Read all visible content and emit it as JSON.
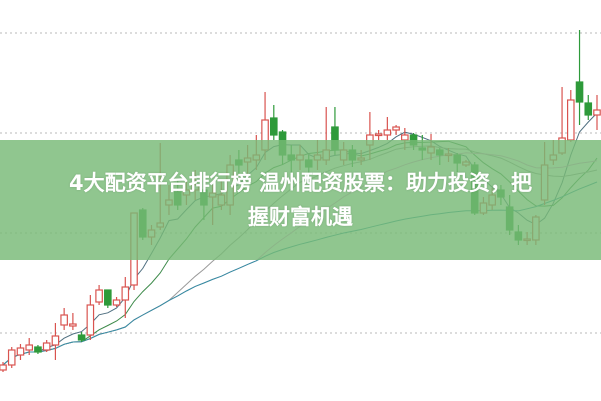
{
  "banner": {
    "title_line1": "4大配资平台排行榜 温州配资股票：助力投资，把",
    "title_line2": "握财富机遇",
    "background_color": "#78b976"
  },
  "chart_data": {
    "type": "candlestick",
    "title": "",
    "xlabel": "",
    "ylabel": "",
    "grid": true,
    "up_color": "#d9534f",
    "down_color": "#2e9a3a",
    "moving_averages": [
      {
        "period": 5,
        "color": "#4f6f80"
      },
      {
        "period": 10,
        "color": "#3d8a4a"
      },
      {
        "period": 20,
        "color": "#9a9a9a"
      },
      {
        "period": 30,
        "color": "#e49ad6"
      },
      {
        "period": 60,
        "color": "#2f8fa0"
      }
    ],
    "ohlc": [
      [
        3.0,
        3.5,
        3.8,
        2.8
      ],
      [
        3.5,
        5.0,
        5.3,
        3.2
      ],
      [
        4.5,
        5.2,
        5.6,
        4.0
      ],
      [
        5.0,
        5.5,
        6.2,
        4.5
      ],
      [
        5.3,
        4.8,
        5.5,
        4.6
      ],
      [
        5.0,
        5.7,
        6.0,
        4.8
      ],
      [
        5.5,
        6.4,
        7.7,
        4.0
      ],
      [
        7.5,
        8.5,
        9.2,
        7.0
      ],
      [
        7.4,
        7.6,
        8.7,
        7.0
      ],
      [
        6.5,
        6.0,
        6.8,
        5.8
      ],
      [
        6.5,
        9.5,
        10.5,
        6.0
      ],
      [
        9.8,
        11.0,
        11.5,
        9.5
      ],
      [
        11.0,
        9.5,
        11.0,
        9.2
      ],
      [
        9.5,
        10.0,
        10.3,
        9.3
      ],
      [
        10.0,
        11.3,
        12.3,
        8.2
      ],
      [
        11.5,
        18.7,
        18.7,
        11.0
      ],
      [
        19.0,
        16.3,
        19.2,
        16.0
      ],
      [
        16.3,
        17.0,
        17.5,
        15.5
      ],
      [
        17.3,
        17.7,
        25.7,
        17.0
      ],
      [
        19.5,
        20.0,
        21.5,
        18.5
      ],
      [
        20.8,
        19.5,
        22.0,
        19.0
      ],
      [
        20.5,
        21.0,
        22.0,
        19.5
      ],
      [
        21.0,
        21.5,
        23.0,
        20.0
      ],
      [
        21.0,
        19.5,
        22.0,
        18.0
      ],
      [
        20.3,
        20.7,
        21.5,
        17.5
      ],
      [
        19.5,
        20.5,
        22.0,
        19.0
      ],
      [
        19.5,
        23.5,
        24.5,
        18.5
      ],
      [
        24.0,
        23.5,
        25.0,
        22.5
      ],
      [
        23.8,
        24.2,
        25.5,
        22.0
      ],
      [
        24.0,
        24.5,
        26.5,
        23.0
      ],
      [
        25.0,
        28.0,
        30.8,
        24.0
      ],
      [
        28.2,
        26.5,
        29.5,
        26.0
      ],
      [
        26.8,
        24.5,
        27.0,
        23.5
      ],
      [
        24.5,
        24.0,
        25.5,
        22.5
      ],
      [
        24.0,
        24.5,
        25.5,
        23.0
      ],
      [
        24.0,
        23.3,
        24.5,
        22.5
      ],
      [
        24.0,
        24.5,
        26.0,
        23.0
      ],
      [
        24.0,
        25.0,
        29.3,
        23.5
      ],
      [
        27.3,
        25.0,
        29.3,
        24.5
      ],
      [
        24.0,
        25.0,
        25.8,
        23.5
      ],
      [
        25.0,
        24.0,
        25.5,
        23.3
      ],
      [
        24.0,
        24.2,
        25.0,
        23.5
      ],
      [
        25.5,
        26.5,
        28.8,
        24.0
      ],
      [
        26.5,
        26.6,
        27.0,
        26.0
      ],
      [
        26.5,
        27.0,
        28.3,
        26.0
      ],
      [
        27.0,
        27.3,
        27.5,
        26.5
      ],
      [
        26.0,
        26.5,
        27.2,
        25.0
      ],
      [
        26.5,
        25.5,
        26.7,
        25.0
      ],
      [
        25.2,
        25.0,
        26.5,
        24.0
      ],
      [
        24.7,
        25.3,
        26.6,
        24.0
      ],
      [
        25.0,
        24.5,
        25.2,
        23.5
      ],
      [
        24.5,
        24.6,
        25.2,
        23.8
      ],
      [
        24.5,
        23.7,
        24.7,
        22.8
      ],
      [
        23.5,
        23.8,
        24.0,
        23.3
      ],
      [
        23.5,
        18.7,
        23.8,
        18.5
      ],
      [
        18.7,
        19.7,
        20.3,
        18.5
      ],
      [
        19.5,
        20.5,
        21.2,
        19.0
      ],
      [
        21.0,
        20.3,
        21.5,
        19.5
      ],
      [
        19.3,
        17.0,
        20.5,
        16.5
      ],
      [
        16.8,
        16.0,
        17.5,
        15.5
      ],
      [
        16.0,
        16.1,
        16.8,
        15.5
      ],
      [
        16.0,
        18.3,
        18.5,
        15.5
      ],
      [
        20.0,
        23.5,
        25.8,
        19.5
      ],
      [
        24.0,
        24.5,
        26.0,
        23.5
      ],
      [
        24.7,
        26.2,
        31.3,
        24.5
      ],
      [
        26.0,
        30.0,
        31.0,
        25.8
      ],
      [
        31.8,
        29.8,
        37.0,
        27.5
      ],
      [
        29.7,
        28.5,
        30.5,
        28.0
      ],
      [
        28.5,
        29.0,
        30.5,
        27.0
      ]
    ]
  }
}
